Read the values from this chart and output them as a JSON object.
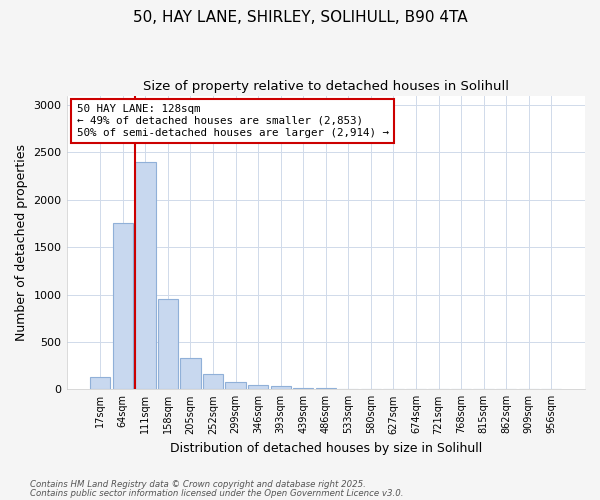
{
  "title_line1": "50, HAY LANE, SHIRLEY, SOLIHULL, B90 4TA",
  "title_line2": "Size of property relative to detached houses in Solihull",
  "xlabel": "Distribution of detached houses by size in Solihull",
  "ylabel": "Number of detached properties",
  "categories": [
    "17sqm",
    "64sqm",
    "111sqm",
    "158sqm",
    "205sqm",
    "252sqm",
    "299sqm",
    "346sqm",
    "393sqm",
    "439sqm",
    "486sqm",
    "533sqm",
    "580sqm",
    "627sqm",
    "674sqm",
    "721sqm",
    "768sqm",
    "815sqm",
    "862sqm",
    "909sqm",
    "956sqm"
  ],
  "values": [
    125,
    1750,
    2400,
    950,
    335,
    160,
    80,
    50,
    30,
    10,
    15,
    5,
    0,
    0,
    0,
    0,
    0,
    0,
    0,
    0,
    0
  ],
  "bar_color": "#c8d8ef",
  "bar_edge_color": "#90b0d8",
  "vline_color": "#cc0000",
  "vline_index": 2,
  "annotation_text_line1": "50 HAY LANE: 128sqm",
  "annotation_text_line2": "← 49% of detached houses are smaller (2,853)",
  "annotation_text_line3": "50% of semi-detached houses are larger (2,914) →",
  "annotation_box_color": "#cc0000",
  "annotation_bg_color": "#ffffff",
  "ylim": [
    0,
    3100
  ],
  "yticks": [
    0,
    500,
    1000,
    1500,
    2000,
    2500,
    3000
  ],
  "footer_line1": "Contains HM Land Registry data © Crown copyright and database right 2025.",
  "footer_line2": "Contains public sector information licensed under the Open Government Licence v3.0.",
  "bg_color": "#f5f5f5",
  "plot_bg_color": "#ffffff",
  "grid_color": "#d0daea"
}
